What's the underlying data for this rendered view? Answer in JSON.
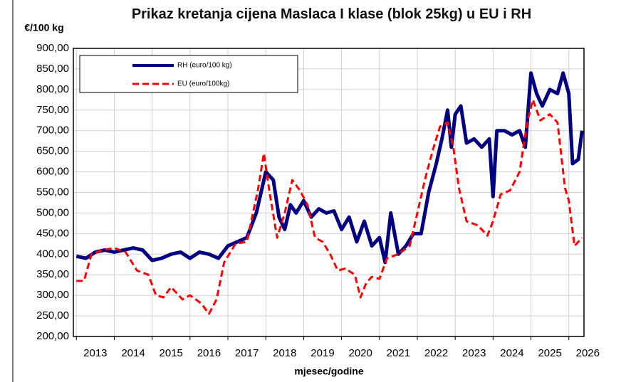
{
  "chart_data": {
    "type": "line",
    "title": "Prikaz kretanja cijena Maslaca I klase (blok 25kg) u EU i RH",
    "y_label": "€/100 kg",
    "x_label": "mjesec/godine",
    "xlim": [
      2012.92,
      2026.4
    ],
    "xticks": [
      2013,
      2014,
      2015,
      2016,
      2017,
      2018,
      2019,
      2020,
      2021,
      2022,
      2023,
      2024,
      2025,
      2026
    ],
    "ylim": [
      200,
      900
    ],
    "yticks": [
      {
        "value": 200,
        "label": "200,00"
      },
      {
        "value": 250,
        "label": "250,00"
      },
      {
        "value": 300,
        "label": "300,00"
      },
      {
        "value": 350,
        "label": "350,00"
      },
      {
        "value": 400,
        "label": "400,00"
      },
      {
        "value": 450,
        "label": "450,00"
      },
      {
        "value": 500,
        "label": "500,00"
      },
      {
        "value": 550,
        "label": "550,00"
      },
      {
        "value": 600,
        "label": "600,00"
      },
      {
        "value": 650,
        "label": "650,00"
      },
      {
        "value": 700,
        "label": "700,00"
      },
      {
        "value": 750,
        "label": "750,00"
      },
      {
        "value": 800,
        "label": "800,00"
      },
      {
        "value": 850,
        "label": "850,00"
      },
      {
        "value": 900,
        "label": "900,00"
      }
    ],
    "grid": true,
    "legend": "upper left",
    "series": [
      {
        "name": "RH (euro/100 kg)",
        "color": "#000080",
        "dashed": false,
        "x": [
          2013.0,
          2013.25,
          2013.5,
          2013.75,
          2014.0,
          2014.25,
          2014.5,
          2014.75,
          2015.0,
          2015.25,
          2015.5,
          2015.75,
          2016.0,
          2016.25,
          2016.5,
          2016.75,
          2017.0,
          2017.25,
          2017.5,
          2017.75,
          2018.0,
          2018.2,
          2018.35,
          2018.5,
          2018.65,
          2018.8,
          2019.0,
          2019.2,
          2019.4,
          2019.6,
          2019.8,
          2020.0,
          2020.2,
          2020.4,
          2020.6,
          2020.8,
          2021.0,
          2021.15,
          2021.3,
          2021.5,
          2021.7,
          2021.9,
          2022.1,
          2022.3,
          2022.5,
          2022.65,
          2022.8,
          2022.9,
          2023.0,
          2023.15,
          2023.3,
          2023.5,
          2023.7,
          2023.9,
          2024.0,
          2024.1,
          2024.3,
          2024.5,
          2024.7,
          2024.85,
          2025.0,
          2025.15,
          2025.3,
          2025.5,
          2025.7,
          2025.85,
          2026.0,
          2026.1,
          2026.25,
          2026.35
        ],
        "values": [
          395,
          390,
          405,
          410,
          405,
          410,
          415,
          410,
          385,
          390,
          400,
          405,
          390,
          405,
          400,
          390,
          420,
          430,
          440,
          500,
          600,
          580,
          490,
          460,
          520,
          500,
          530,
          490,
          510,
          500,
          505,
          460,
          490,
          430,
          480,
          420,
          440,
          380,
          500,
          400,
          420,
          450,
          450,
          550,
          620,
          680,
          750,
          660,
          740,
          760,
          670,
          680,
          660,
          680,
          540,
          700,
          700,
          690,
          700,
          660,
          840,
          790,
          760,
          800,
          790,
          840,
          790,
          620,
          630,
          700
        ]
      },
      {
        "name": "EU (euro/100kg)",
        "color": "#ff0000",
        "dashed": true,
        "x": [
          2013.0,
          2013.2,
          2013.4,
          2013.7,
          2014.0,
          2014.3,
          2014.6,
          2014.9,
          2015.1,
          2015.3,
          2015.5,
          2015.8,
          2016.0,
          2016.3,
          2016.5,
          2016.7,
          2016.9,
          2017.2,
          2017.5,
          2017.8,
          2017.95,
          2018.1,
          2018.3,
          2018.5,
          2018.7,
          2018.9,
          2019.1,
          2019.3,
          2019.5,
          2019.7,
          2019.9,
          2020.1,
          2020.35,
          2020.5,
          2020.65,
          2020.8,
          2021.0,
          2021.2,
          2021.5,
          2021.8,
          2022.0,
          2022.2,
          2022.4,
          2022.6,
          2022.8,
          2022.95,
          2023.1,
          2023.3,
          2023.6,
          2023.85,
          2024.0,
          2024.2,
          2024.45,
          2024.7,
          2024.9,
          2025.05,
          2025.25,
          2025.5,
          2025.7,
          2025.9,
          2026.0,
          2026.15,
          2026.35
        ],
        "values": [
          335,
          335,
          400,
          410,
          415,
          405,
          360,
          350,
          300,
          295,
          320,
          290,
          300,
          280,
          255,
          290,
          380,
          425,
          430,
          560,
          645,
          550,
          440,
          500,
          580,
          555,
          520,
          440,
          430,
          400,
          360,
          365,
          350,
          295,
          330,
          345,
          340,
          390,
          400,
          420,
          500,
          580,
          650,
          710,
          720,
          660,
          560,
          480,
          470,
          445,
          480,
          545,
          555,
          600,
          720,
          775,
          725,
          740,
          720,
          560,
          530,
          420,
          440
        ]
      }
    ]
  }
}
